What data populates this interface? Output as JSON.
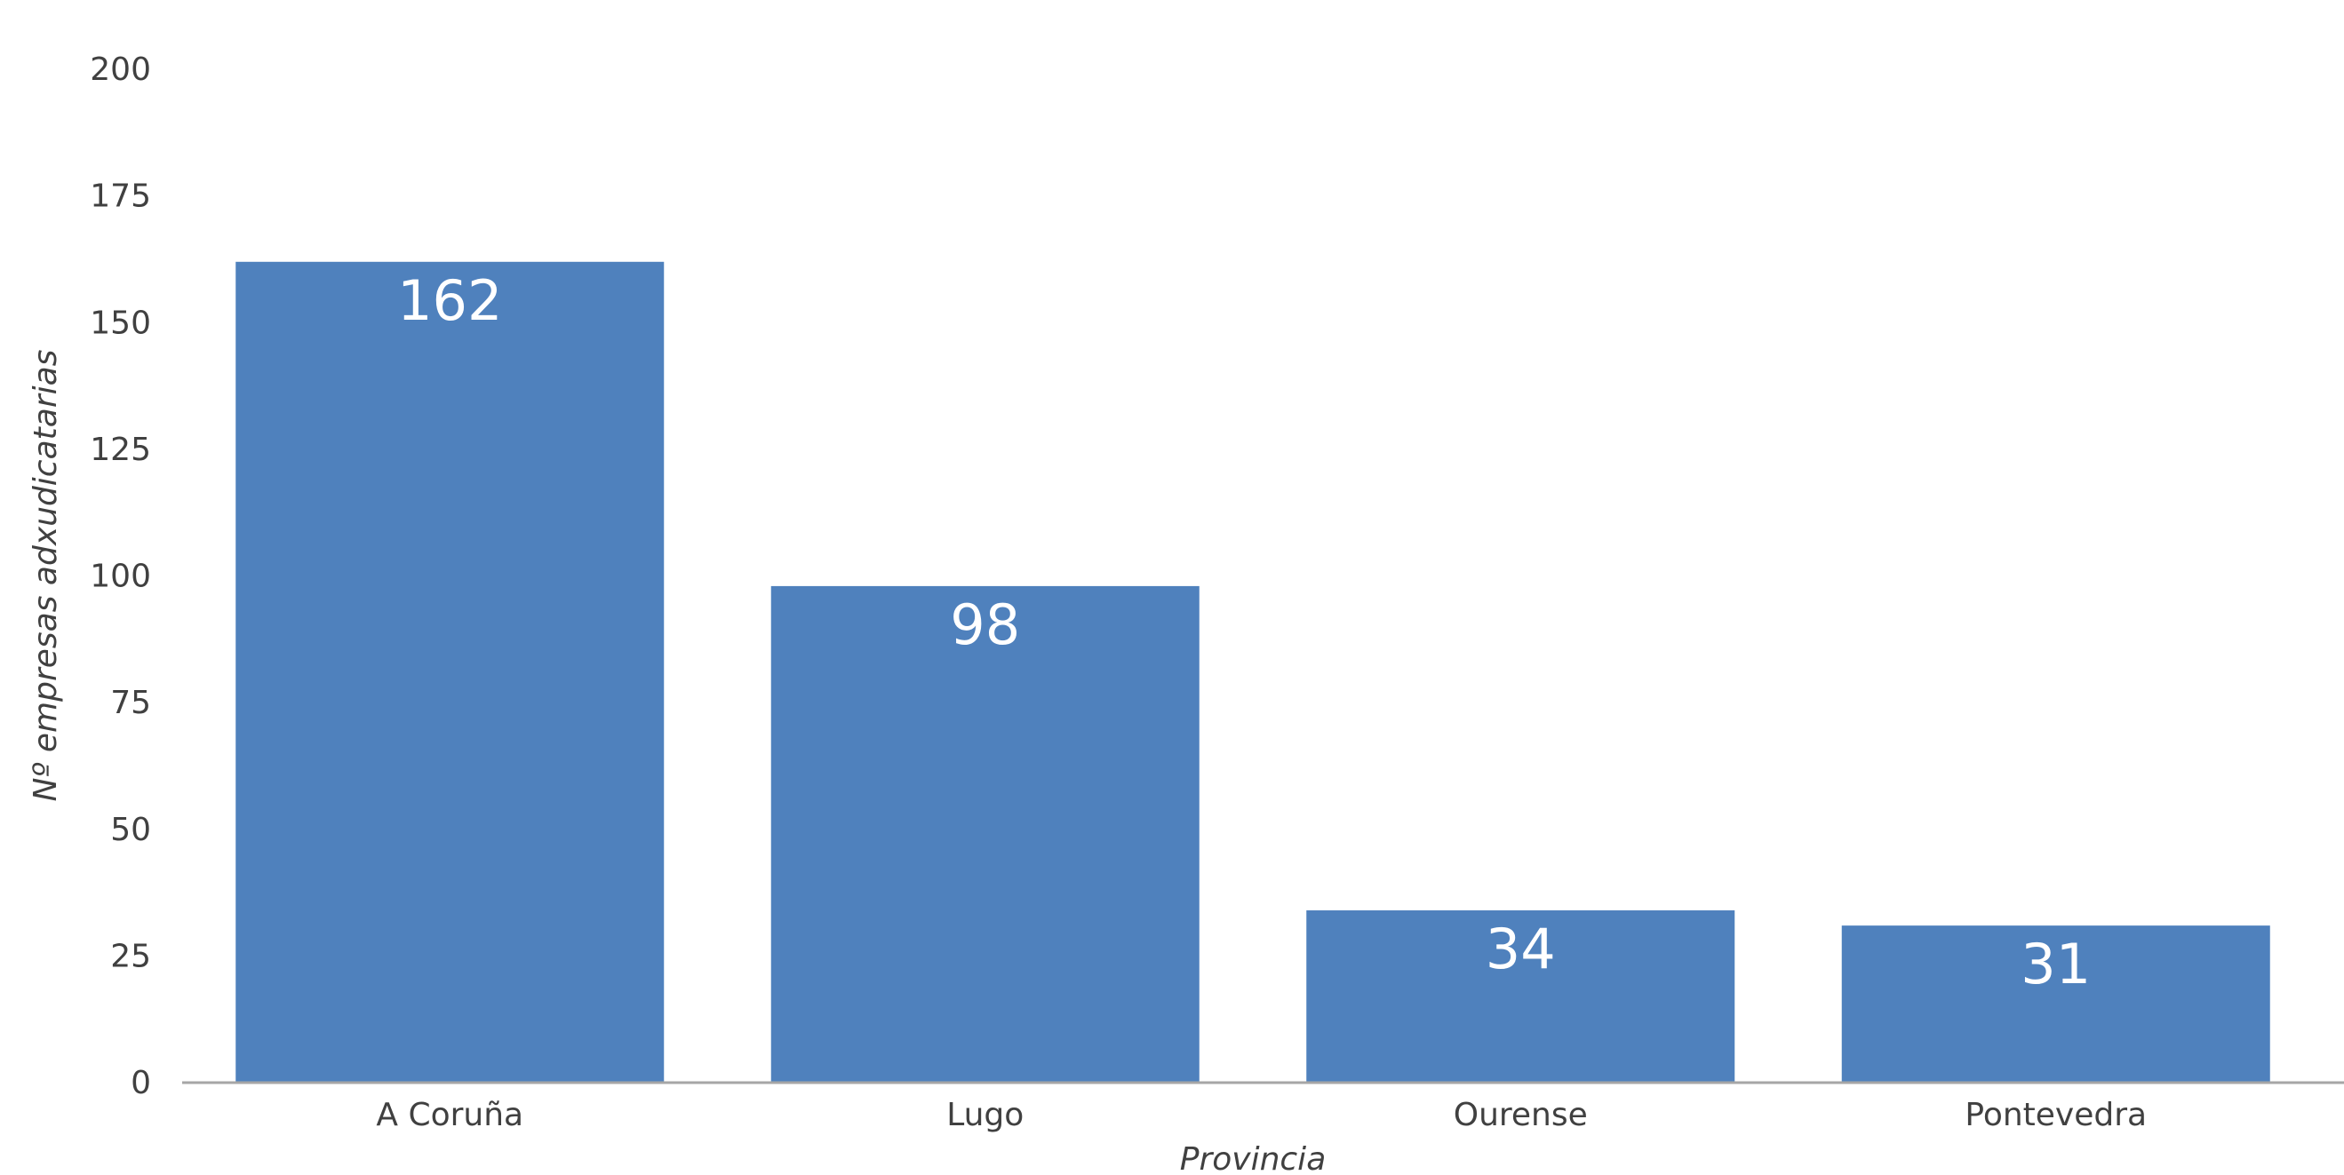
{
  "chart_data": {
    "type": "bar",
    "title": "",
    "xlabel": "Provincia",
    "ylabel": "Nº empresas adxudicatarias",
    "categories": [
      "A Coruña",
      "Lugo",
      "Ourense",
      "Pontevedra"
    ],
    "values": [
      162,
      98,
      34,
      31
    ],
    "ylim": [
      0,
      200
    ],
    "yticks": [
      0,
      25,
      50,
      75,
      100,
      125,
      150,
      175,
      200
    ],
    "grid": false,
    "legend": "none",
    "bar_color": "#4f81bd",
    "axis_color": "#a6a6a6",
    "text_color": "#404040",
    "data_label_color": "#ffffff"
  }
}
